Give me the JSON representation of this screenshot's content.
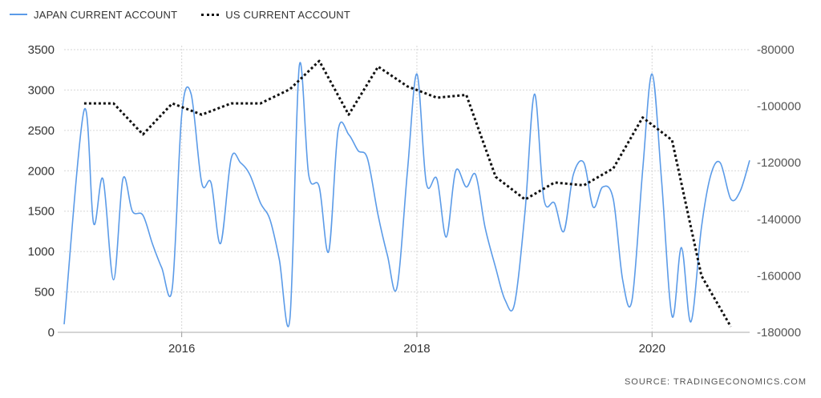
{
  "legend": {
    "japan_label": "JAPAN CURRENT ACCOUNT",
    "us_label": "US CURRENT ACCOUNT"
  },
  "source": "SOURCE:  TRADINGECONOMICS.COM",
  "colors": {
    "japan": "#5b9be8",
    "us": "#111111",
    "grid": "#d6d6d6",
    "axis_text_left": "#333333",
    "axis_text_right": "#555555"
  },
  "chart_data": {
    "type": "line",
    "title": "",
    "grid": true,
    "legend_position": "top-left",
    "x_ticks": [
      2016,
      2018,
      2020
    ],
    "x_range": [
      2015.0,
      2020.83
    ],
    "y_left": {
      "range": [
        0,
        3500
      ],
      "ticks": [
        "0",
        "500",
        "1000",
        "1500",
        "2000",
        "2500",
        "3000",
        "3500"
      ]
    },
    "y_right": {
      "range": [
        -180000,
        -80000
      ],
      "ticks": [
        "-80000",
        "-100000",
        "-120000",
        "-140000",
        "-160000",
        "-180000"
      ]
    },
    "series": [
      {
        "name": "JAPAN CURRENT ACCOUNT",
        "axis": "left",
        "style": "solid",
        "x": [
          2015.0,
          2015.17,
          2015.25,
          2015.33,
          2015.42,
          2015.5,
          2015.58,
          2015.67,
          2015.75,
          2015.83,
          2015.92,
          2016.0,
          2016.08,
          2016.17,
          2016.25,
          2016.33,
          2016.42,
          2016.5,
          2016.58,
          2016.67,
          2016.75,
          2016.83,
          2016.92,
          2017.0,
          2017.08,
          2017.17,
          2017.25,
          2017.33,
          2017.42,
          2017.5,
          2017.58,
          2017.67,
          2017.75,
          2017.83,
          2017.92,
          2018.0,
          2018.08,
          2018.17,
          2018.25,
          2018.33,
          2018.42,
          2018.5,
          2018.58,
          2018.67,
          2018.75,
          2018.83,
          2018.92,
          2019.0,
          2019.08,
          2019.17,
          2019.25,
          2019.33,
          2019.42,
          2019.5,
          2019.58,
          2019.67,
          2019.75,
          2019.83,
          2019.92,
          2020.0,
          2020.08,
          2020.17,
          2020.25,
          2020.33,
          2020.42,
          2020.5,
          2020.58,
          2020.67,
          2020.75,
          2020.83
        ],
        "values": [
          100,
          2750,
          1350,
          1900,
          650,
          1900,
          1500,
          1450,
          1100,
          800,
          550,
          2700,
          2950,
          1850,
          1850,
          1100,
          2150,
          2100,
          1950,
          1600,
          1400,
          900,
          170,
          3300,
          1950,
          1800,
          1000,
          2500,
          2450,
          2250,
          2150,
          1450,
          950,
          550,
          2000,
          3200,
          1850,
          1900,
          1180,
          2000,
          1800,
          1950,
          1300,
          800,
          400,
          350,
          1500,
          2950,
          1650,
          1600,
          1250,
          1950,
          2100,
          1550,
          1800,
          1650,
          650,
          400,
          2000,
          3200,
          1900,
          200,
          1050,
          130,
          1300,
          1950,
          2100,
          1650,
          1750,
          2130
        ]
      },
      {
        "name": "US CURRENT ACCOUNT",
        "axis": "right",
        "style": "dotted",
        "x": [
          2015.17,
          2015.42,
          2015.67,
          2015.92,
          2016.17,
          2016.42,
          2016.67,
          2016.92,
          2017.17,
          2017.42,
          2017.67,
          2017.92,
          2018.17,
          2018.42,
          2018.67,
          2018.92,
          2019.17,
          2019.42,
          2019.67,
          2019.92,
          2020.17,
          2020.42,
          2020.67
        ],
        "values": [
          -99000,
          -99000,
          -110000,
          -99000,
          -103000,
          -99000,
          -99000,
          -94000,
          -84000,
          -103000,
          -86000,
          -93000,
          -97000,
          -96000,
          -125000,
          -133000,
          -127000,
          -128000,
          -122000,
          -104000,
          -112000,
          -160000,
          -178000
        ]
      }
    ]
  }
}
